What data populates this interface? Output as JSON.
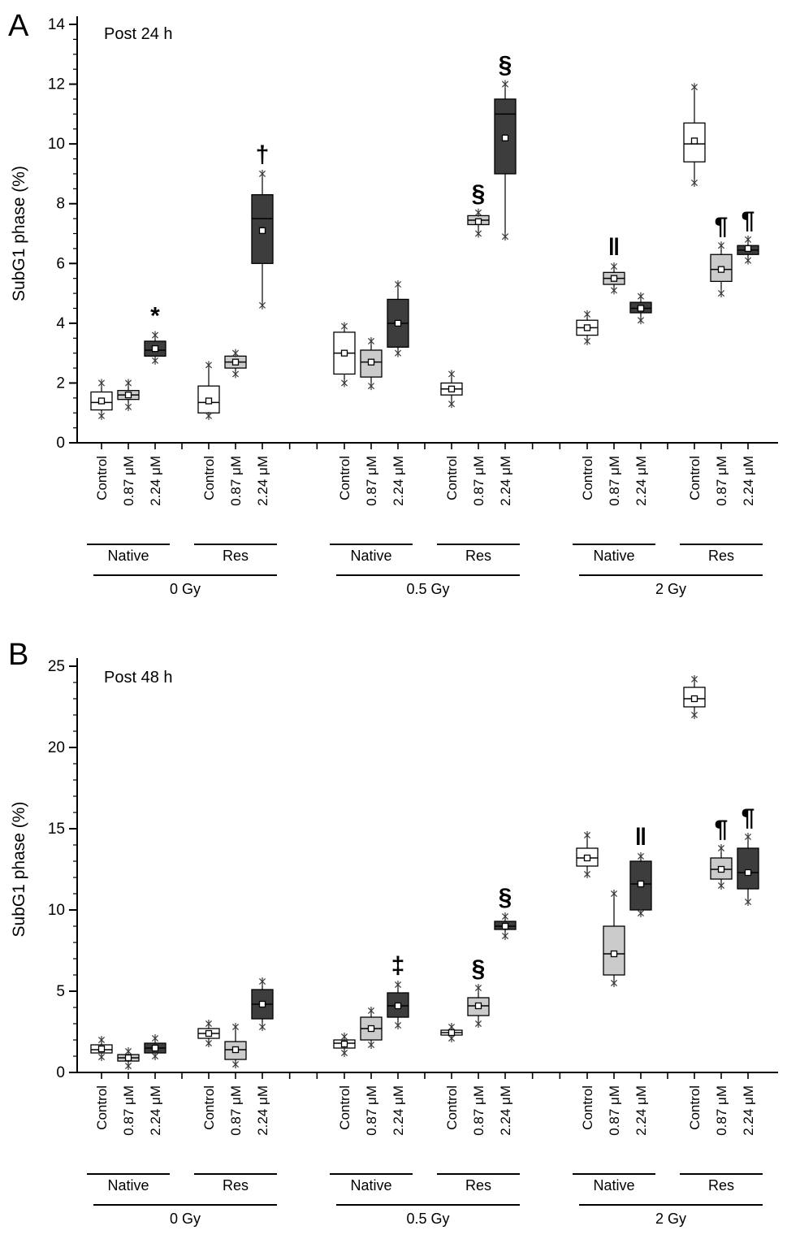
{
  "figure": {
    "panel_a_label": "A",
    "panel_b_label": "B",
    "ylabel": "SubG1 phase (%)"
  },
  "chart_data": [
    {
      "type": "boxplot",
      "panel_label": "A",
      "title": "Post 24 h",
      "ylabel": "SubG1 phase (%)",
      "ylim": [
        0,
        14
      ],
      "ytick_major": 2,
      "ytick_minor": 0.5,
      "series": [
        "Control",
        "0.87 μM",
        "2.24 μM"
      ],
      "series_colors": [
        "#ffffff",
        "#cbcbcb",
        "#3d3d3d"
      ],
      "dose_groups": [
        {
          "label": "0 Gy",
          "subgroups": [
            {
              "label": "Native",
              "boxes": [
                {
                  "series": "Control",
                  "whisker_low": 0.9,
                  "q1": 1.1,
                  "median": 1.35,
                  "mean": 1.4,
                  "q3": 1.7,
                  "whisker_high": 2.0,
                  "annotation": ""
                },
                {
                  "series": "0.87 μM",
                  "whisker_low": 1.2,
                  "q1": 1.45,
                  "median": 1.6,
                  "mean": 1.6,
                  "q3": 1.75,
                  "whisker_high": 2.0,
                  "annotation": ""
                },
                {
                  "series": "2.24 μM",
                  "whisker_low": 2.75,
                  "q1": 2.9,
                  "median": 3.1,
                  "mean": 3.15,
                  "q3": 3.4,
                  "whisker_high": 3.6,
                  "annotation": "*"
                }
              ]
            },
            {
              "label": "Res",
              "boxes": [
                {
                  "series": "Control",
                  "whisker_low": 0.9,
                  "q1": 1.0,
                  "median": 1.35,
                  "mean": 1.4,
                  "q3": 1.9,
                  "whisker_high": 2.6,
                  "annotation": ""
                },
                {
                  "series": "0.87 μM",
                  "whisker_low": 2.3,
                  "q1": 2.5,
                  "median": 2.7,
                  "mean": 2.7,
                  "q3": 2.9,
                  "whisker_high": 3.0,
                  "annotation": ""
                },
                {
                  "series": "2.24 μM",
                  "whisker_low": 4.6,
                  "q1": 6.0,
                  "median": 7.5,
                  "mean": 7.1,
                  "q3": 8.3,
                  "whisker_high": 9.0,
                  "annotation": "†"
                }
              ]
            }
          ]
        },
        {
          "label": "0.5 Gy",
          "subgroups": [
            {
              "label": "Native",
              "boxes": [
                {
                  "series": "Control",
                  "whisker_low": 2.0,
                  "q1": 2.3,
                  "median": 3.0,
                  "mean": 3.0,
                  "q3": 3.7,
                  "whisker_high": 3.9,
                  "annotation": ""
                },
                {
                  "series": "0.87 μM",
                  "whisker_low": 1.9,
                  "q1": 2.2,
                  "median": 2.7,
                  "mean": 2.7,
                  "q3": 3.1,
                  "whisker_high": 3.4,
                  "annotation": ""
                },
                {
                  "series": "2.24 μM",
                  "whisker_low": 3.0,
                  "q1": 3.2,
                  "median": 4.0,
                  "mean": 4.0,
                  "q3": 4.8,
                  "whisker_high": 5.3,
                  "annotation": ""
                }
              ]
            },
            {
              "label": "Res",
              "boxes": [
                {
                  "series": "Control",
                  "whisker_low": 1.3,
                  "q1": 1.6,
                  "median": 1.8,
                  "mean": 1.8,
                  "q3": 2.0,
                  "whisker_high": 2.3,
                  "annotation": ""
                },
                {
                  "series": "0.87 μM",
                  "whisker_low": 7.0,
                  "q1": 7.3,
                  "median": 7.45,
                  "mean": 7.4,
                  "q3": 7.6,
                  "whisker_high": 7.7,
                  "annotation": "§"
                },
                {
                  "series": "2.24 μM",
                  "whisker_low": 6.9,
                  "q1": 9.0,
                  "median": 11.0,
                  "mean": 10.2,
                  "q3": 11.5,
                  "whisker_high": 12.0,
                  "annotation": "§"
                }
              ]
            }
          ]
        },
        {
          "label": "2 Gy",
          "subgroups": [
            {
              "label": "Native",
              "boxes": [
                {
                  "series": "Control",
                  "whisker_low": 3.4,
                  "q1": 3.6,
                  "median": 3.85,
                  "mean": 3.85,
                  "q3": 4.1,
                  "whisker_high": 4.3,
                  "annotation": ""
                },
                {
                  "series": "0.87 μM",
                  "whisker_low": 5.1,
                  "q1": 5.3,
                  "median": 5.5,
                  "mean": 5.5,
                  "q3": 5.7,
                  "whisker_high": 5.9,
                  "annotation": "‖"
                },
                {
                  "series": "2.24 μM",
                  "whisker_low": 4.1,
                  "q1": 4.35,
                  "median": 4.5,
                  "mean": 4.5,
                  "q3": 4.7,
                  "whisker_high": 4.9,
                  "annotation": ""
                }
              ]
            },
            {
              "label": "Res",
              "boxes": [
                {
                  "series": "Control",
                  "whisker_low": 8.7,
                  "q1": 9.4,
                  "median": 10.0,
                  "mean": 10.1,
                  "q3": 10.7,
                  "whisker_high": 11.9,
                  "annotation": ""
                },
                {
                  "series": "0.87 μM",
                  "whisker_low": 5.0,
                  "q1": 5.4,
                  "median": 5.8,
                  "mean": 5.8,
                  "q3": 6.3,
                  "whisker_high": 6.6,
                  "annotation": "¶"
                },
                {
                  "series": "2.24 μM",
                  "whisker_low": 6.1,
                  "q1": 6.3,
                  "median": 6.45,
                  "mean": 6.5,
                  "q3": 6.6,
                  "whisker_high": 6.8,
                  "annotation": "¶"
                }
              ]
            }
          ]
        }
      ]
    },
    {
      "type": "boxplot",
      "panel_label": "B",
      "title": "Post 48 h",
      "ylabel": "SubG1 phase (%)",
      "ylim": [
        0,
        25
      ],
      "ytick_major": 5,
      "ytick_minor": 1,
      "series": [
        "Control",
        "0.87 μM",
        "2.24 μM"
      ],
      "series_colors": [
        "#ffffff",
        "#cbcbcb",
        "#3d3d3d"
      ],
      "dose_groups": [
        {
          "label": "0 Gy",
          "subgroups": [
            {
              "label": "Native",
              "boxes": [
                {
                  "series": "Control",
                  "whisker_low": 0.95,
                  "q1": 1.2,
                  "median": 1.4,
                  "mean": 1.45,
                  "q3": 1.7,
                  "whisker_high": 2.0,
                  "annotation": ""
                },
                {
                  "series": "0.87 μM",
                  "whisker_low": 0.4,
                  "q1": 0.7,
                  "median": 0.9,
                  "mean": 0.9,
                  "q3": 1.1,
                  "whisker_high": 1.3,
                  "annotation": ""
                },
                {
                  "series": "2.24 μM",
                  "whisker_low": 1.0,
                  "q1": 1.2,
                  "median": 1.5,
                  "mean": 1.5,
                  "q3": 1.8,
                  "whisker_high": 2.1,
                  "annotation": ""
                }
              ]
            },
            {
              "label": "Res",
              "boxes": [
                {
                  "series": "Control",
                  "whisker_low": 1.8,
                  "q1": 2.1,
                  "median": 2.4,
                  "mean": 2.4,
                  "q3": 2.7,
                  "whisker_high": 3.0,
                  "annotation": ""
                },
                {
                  "series": "0.87 μM",
                  "whisker_low": 0.5,
                  "q1": 0.8,
                  "median": 1.4,
                  "mean": 1.4,
                  "q3": 1.9,
                  "whisker_high": 2.8,
                  "annotation": ""
                },
                {
                  "series": "2.24 μM",
                  "whisker_low": 2.8,
                  "q1": 3.3,
                  "median": 4.2,
                  "mean": 4.2,
                  "q3": 5.1,
                  "whisker_high": 5.6,
                  "annotation": ""
                }
              ]
            }
          ]
        },
        {
          "label": "0.5 Gy",
          "subgroups": [
            {
              "label": "Native",
              "boxes": [
                {
                  "series": "Control",
                  "whisker_low": 1.2,
                  "q1": 1.5,
                  "median": 1.8,
                  "mean": 1.75,
                  "q3": 2.0,
                  "whisker_high": 2.2,
                  "annotation": ""
                },
                {
                  "series": "0.87 μM",
                  "whisker_low": 1.7,
                  "q1": 2.0,
                  "median": 2.7,
                  "mean": 2.7,
                  "q3": 3.4,
                  "whisker_high": 3.8,
                  "annotation": ""
                },
                {
                  "series": "2.24 μM",
                  "whisker_low": 2.9,
                  "q1": 3.4,
                  "median": 4.1,
                  "mean": 4.1,
                  "q3": 4.9,
                  "whisker_high": 5.4,
                  "annotation": "‡"
                }
              ]
            },
            {
              "label": "Res",
              "boxes": [
                {
                  "series": "Control",
                  "whisker_low": 2.1,
                  "q1": 2.3,
                  "median": 2.45,
                  "mean": 2.45,
                  "q3": 2.6,
                  "whisker_high": 2.8,
                  "annotation": ""
                },
                {
                  "series": "0.87 μM",
                  "whisker_low": 3.0,
                  "q1": 3.5,
                  "median": 4.1,
                  "mean": 4.1,
                  "q3": 4.6,
                  "whisker_high": 5.2,
                  "annotation": "§"
                },
                {
                  "series": "2.24 μM",
                  "whisker_low": 8.4,
                  "q1": 8.8,
                  "median": 9.0,
                  "mean": 9.0,
                  "q3": 9.3,
                  "whisker_high": 9.6,
                  "annotation": "§"
                }
              ]
            }
          ]
        },
        {
          "label": "2 Gy",
          "subgroups": [
            {
              "label": "Native",
              "boxes": [
                {
                  "series": "Control",
                  "whisker_low": 12.2,
                  "q1": 12.7,
                  "median": 13.2,
                  "mean": 13.2,
                  "q3": 13.8,
                  "whisker_high": 14.6,
                  "annotation": ""
                },
                {
                  "series": "0.87 μM",
                  "whisker_low": 5.5,
                  "q1": 6.0,
                  "median": 7.3,
                  "mean": 7.3,
                  "q3": 9.0,
                  "whisker_high": 11.0,
                  "annotation": ""
                },
                {
                  "series": "2.24 μM",
                  "whisker_low": 9.8,
                  "q1": 10.0,
                  "median": 11.6,
                  "mean": 11.6,
                  "q3": 13.0,
                  "whisker_high": 13.3,
                  "annotation": "‖"
                }
              ]
            },
            {
              "label": "Res",
              "boxes": [
                {
                  "series": "Control",
                  "whisker_low": 22.0,
                  "q1": 22.5,
                  "median": 23.0,
                  "mean": 23.0,
                  "q3": 23.7,
                  "whisker_high": 24.2,
                  "annotation": ""
                },
                {
                  "series": "0.87 μM",
                  "whisker_low": 11.5,
                  "q1": 11.9,
                  "median": 12.5,
                  "mean": 12.5,
                  "q3": 13.2,
                  "whisker_high": 13.8,
                  "annotation": "¶"
                },
                {
                  "series": "2.24 μM",
                  "whisker_low": 10.5,
                  "q1": 11.3,
                  "median": 12.3,
                  "mean": 12.3,
                  "q3": 13.8,
                  "whisker_high": 14.5,
                  "annotation": "¶"
                }
              ]
            }
          ]
        }
      ]
    }
  ]
}
